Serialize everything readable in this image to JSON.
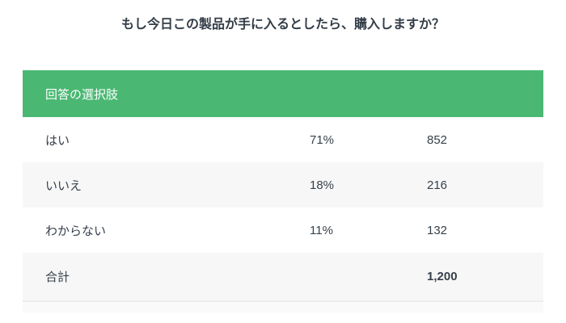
{
  "title": "もし今日この製品が手に入るとしたら、購入しますか？",
  "table": {
    "header": "回答の選択肢",
    "rows": [
      {
        "label": "はい",
        "percent": "71%",
        "count": "852"
      },
      {
        "label": "いいえ",
        "percent": "18%",
        "count": "216"
      },
      {
        "label": "わからない",
        "percent": "11%",
        "count": "132"
      }
    ],
    "total": {
      "label": "合計",
      "percent": "",
      "count": "1,200"
    }
  },
  "colors": {
    "header_bg": "#4ab873",
    "header_text": "#ffffff",
    "zebra_row_bg": "#f7f7f7",
    "partial_row_bg": "#fafafa",
    "text": "#37404a"
  },
  "chart_data": {
    "type": "table",
    "title": "もし今日この製品が手に入るとしたら、購入しますか？",
    "header": [
      "回答の選択肢",
      "",
      ""
    ],
    "rows": [
      [
        "はい",
        "71%",
        852
      ],
      [
        "いいえ",
        "18%",
        216
      ],
      [
        "わからない",
        "11%",
        132
      ],
      [
        "合計",
        "",
        "1,200"
      ]
    ]
  }
}
